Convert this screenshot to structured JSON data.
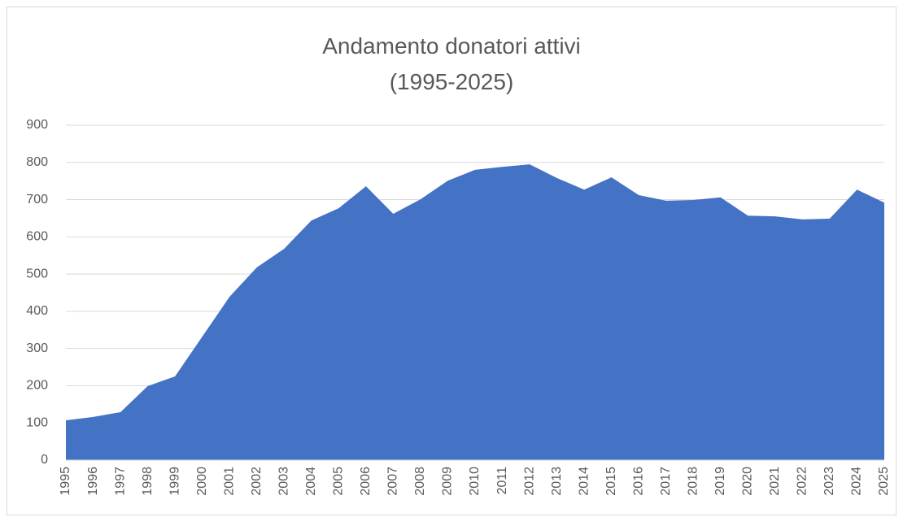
{
  "chart_data": {
    "type": "area",
    "title": [
      "Andamento donatori attivi",
      "(1995-2025)"
    ],
    "categories": [
      "1995",
      "1996",
      "1997",
      "1998",
      "1999",
      "2000",
      "2001",
      "2002",
      "2003",
      "2004",
      "2005",
      "2006",
      "2007",
      "2008",
      "2009",
      "2010",
      "2011",
      "2012",
      "2013",
      "2014",
      "2015",
      "2016",
      "2017",
      "2018",
      "2019",
      "2020",
      "2021",
      "2022",
      "2023",
      "2024",
      "2025"
    ],
    "values": [
      107,
      116,
      129,
      199,
      225,
      332,
      439,
      518,
      568,
      644,
      677,
      736,
      662,
      701,
      751,
      780,
      788,
      795,
      758,
      727,
      760,
      712,
      697,
      699,
      706,
      657,
      655,
      647,
      649,
      727,
      692
    ],
    "color": "#4472c4",
    "ylim": [
      0,
      900
    ],
    "yticks": [
      0,
      100,
      200,
      300,
      400,
      500,
      600,
      700,
      800,
      900
    ],
    "grid": true
  }
}
